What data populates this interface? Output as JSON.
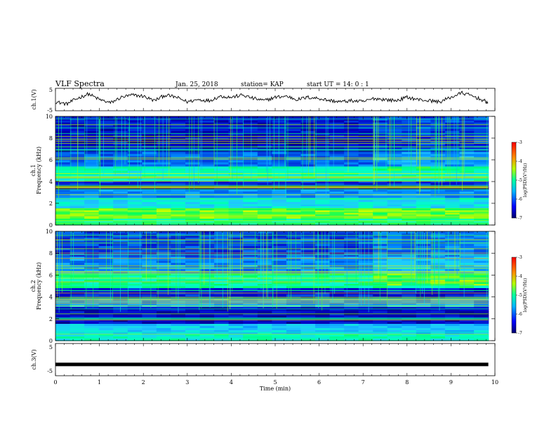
{
  "header": {
    "title": "VLF Spectra",
    "date": "Jan. 25, 2018",
    "station": "station= KAP",
    "start": "start  UT =   14: 0  : 1"
  },
  "colors": {
    "background": "#ffffff",
    "axis": "#000000",
    "spectro_dark": "#00006e",
    "spectro_mid": "#0040e0",
    "spectro_cyan": "#20c8ff",
    "spectro_green": "#00ff60",
    "spectro_yellow": "#e8ff00",
    "spectro_red": "#ff2000"
  },
  "chart_data": [
    {
      "id": "ch1_waveform",
      "type": "line",
      "ylabel": "ch.1(V)",
      "ylim": [
        -5,
        5
      ],
      "yticks": [
        "5",
        "-5"
      ],
      "xlim": [
        0,
        10
      ],
      "series": [
        {
          "name": "ch.1",
          "x": [
            0,
            0.25,
            0.5,
            0.75,
            1.0,
            1.25,
            1.5,
            1.75,
            2.0,
            2.25,
            2.5,
            2.75,
            3.0,
            3.25,
            3.5,
            3.75,
            4.0,
            4.25,
            4.5,
            4.75,
            5.0,
            5.25,
            5.5,
            5.75,
            6.0,
            6.25,
            6.5,
            6.75,
            7.0,
            7.25,
            7.5,
            7.75,
            8.0,
            8.25,
            8.5,
            8.75,
            9.0,
            9.25,
            9.5,
            9.75,
            9.85
          ],
          "y": [
            -1.0,
            -2.0,
            0.5,
            2.5,
            0.0,
            -1.5,
            1.0,
            2.0,
            1.5,
            -0.5,
            2.0,
            1.0,
            -1.0,
            0.0,
            -0.5,
            1.5,
            1.0,
            2.0,
            0.5,
            -0.5,
            1.0,
            1.5,
            0.0,
            1.0,
            0.5,
            -0.5,
            -1.0,
            -0.5,
            -1.0,
            0.5,
            0.0,
            -0.5,
            1.0,
            0.0,
            -0.5,
            -1.0,
            1.0,
            3.0,
            1.5,
            -0.5,
            -1.5
          ]
        }
      ]
    },
    {
      "id": "ch1_spectrogram",
      "type": "heatmap",
      "channel": "ch.1",
      "ylabel": "Frequency (kHz)",
      "ylim": [
        0,
        10
      ],
      "yticks": [
        "0",
        "2",
        "4",
        "6",
        "8",
        "10"
      ],
      "xlim": [
        0,
        10
      ],
      "colorbar": {
        "label": "log(PSD)(V²/Hz)",
        "range": [
          -7,
          -3
        ],
        "ticks": [
          "-3",
          "-4",
          "-5",
          "-6",
          "-7"
        ]
      },
      "bands_khz": [
        {
          "from": 0.0,
          "to": 0.5,
          "level": 0.55
        },
        {
          "from": 0.5,
          "to": 1.5,
          "level": 0.65
        },
        {
          "from": 1.5,
          "to": 2.5,
          "level": 0.45
        },
        {
          "from": 2.5,
          "to": 3.2,
          "level": 0.3
        },
        {
          "from": 3.2,
          "to": 3.6,
          "level": 0.05
        },
        {
          "from": 3.6,
          "to": 4.0,
          "level": 0.15
        },
        {
          "from": 4.0,
          "to": 5.4,
          "level": 0.5
        },
        {
          "from": 5.4,
          "to": 6.8,
          "level": 0.25
        },
        {
          "from": 6.8,
          "to": 8.2,
          "level": 0.1
        },
        {
          "from": 8.2,
          "to": 10.0,
          "level": 0.12
        }
      ]
    },
    {
      "id": "ch2_spectrogram",
      "type": "heatmap",
      "channel": "ch.2",
      "ylabel": "Frequency (kHz)",
      "ylim": [
        0,
        10
      ],
      "yticks": [
        "0",
        "2",
        "4",
        "6",
        "8",
        "10"
      ],
      "xlim": [
        0,
        10
      ],
      "colorbar": {
        "label": "log(PSD)(V²/Hz)",
        "range": [
          -7,
          -3
        ],
        "ticks": [
          "-3",
          "-4",
          "-5",
          "-6",
          "-7"
        ]
      },
      "bands_khz": [
        {
          "from": 0.0,
          "to": 0.6,
          "level": 0.5
        },
        {
          "from": 0.6,
          "to": 1.6,
          "level": 0.4
        },
        {
          "from": 1.6,
          "to": 3.0,
          "level": 0.1
        },
        {
          "from": 3.0,
          "to": 3.8,
          "level": 0.35
        },
        {
          "from": 3.8,
          "to": 4.8,
          "level": 0.15
        },
        {
          "from": 4.8,
          "to": 6.2,
          "level": 0.55
        },
        {
          "from": 6.2,
          "to": 7.6,
          "level": 0.3
        },
        {
          "from": 7.6,
          "to": 10.0,
          "level": 0.2
        }
      ]
    },
    {
      "id": "ch3_waveform",
      "type": "line",
      "ylabel": "ch.3(V)",
      "ylim": [
        -5,
        5
      ],
      "yticks": [
        "5",
        "-5"
      ],
      "xlim": [
        0,
        10
      ],
      "xlabel": "Time  (min)",
      "xticks": [
        "0",
        "1",
        "2",
        "3",
        "4",
        "5",
        "6",
        "7",
        "8",
        "9",
        "10"
      ],
      "series": [
        {
          "name": "ch.3",
          "x": [
            0,
            9.85
          ],
          "y": [
            -1.5,
            -1.5
          ]
        }
      ]
    }
  ]
}
